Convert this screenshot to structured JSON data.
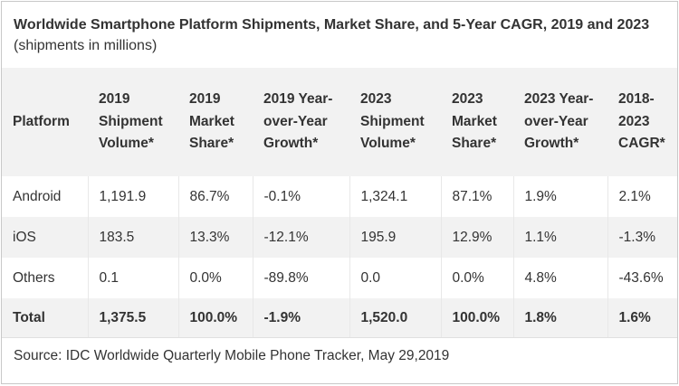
{
  "title": {
    "bold": "Worldwide Smartphone Platform Shipments, Market Share, and 5-Year CAGR, 2019 and 2023",
    "normal": "(shipments in millions)"
  },
  "columns": [
    "Platform",
    "2019 Shipment Volume*",
    "2019 Market Share*",
    "2019 Year-over-Year Growth*",
    "2023 Shipment Volume*",
    "2023 Market Share*",
    "2023 Year-over-Year Growth*",
    "2018-2023 CAGR*"
  ],
  "rows": [
    [
      "Android",
      "1,191.9",
      "86.7%",
      "-0.1%",
      "1,324.1",
      "87.1%",
      "1.9%",
      "2.1%"
    ],
    [
      "iOS",
      "183.5",
      "13.3%",
      "-12.1%",
      "195.9",
      "12.9%",
      "1.1%",
      "-1.3%"
    ],
    [
      "Others",
      "0.1",
      "0.0%",
      "-89.8%",
      "0.0",
      "0.0%",
      "4.8%",
      "-43.6%"
    ],
    [
      "Total",
      "1,375.5",
      "100.0%",
      "-1.9%",
      "1,520.0",
      "100.0%",
      "1.8%",
      "1.6%"
    ]
  ],
  "source": "Source: IDC Worldwide Quarterly Mobile Phone Tracker, May 29,2019"
}
